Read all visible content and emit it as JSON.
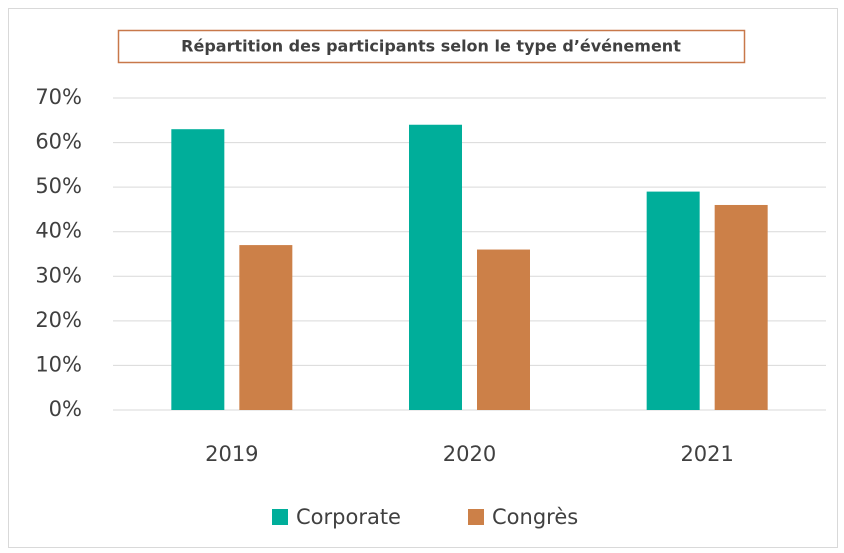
{
  "chart_data": {
    "type": "bar",
    "title": "Répartition des participants selon le type d’événement",
    "categories": [
      "2019",
      "2020",
      "2021"
    ],
    "series": [
      {
        "name": "Corporate",
        "color": "#00ae9a",
        "values": [
          63,
          64,
          49
        ]
      },
      {
        "name": "Congrès",
        "color": "#cc8048",
        "values": [
          37,
          36,
          46
        ]
      }
    ],
    "ylim": [
      0,
      70
    ],
    "yticks": [
      {
        "value": 0,
        "label": "0%"
      },
      {
        "value": 10,
        "label": "10%"
      },
      {
        "value": 20,
        "label": "20%"
      },
      {
        "value": 30,
        "label": "30%"
      },
      {
        "value": 40,
        "label": "40%"
      },
      {
        "value": 50,
        "label": "50%"
      },
      {
        "value": 60,
        "label": "60%"
      },
      {
        "value": 70,
        "label": "70%"
      }
    ],
    "grid": true,
    "legend": "bottom"
  }
}
